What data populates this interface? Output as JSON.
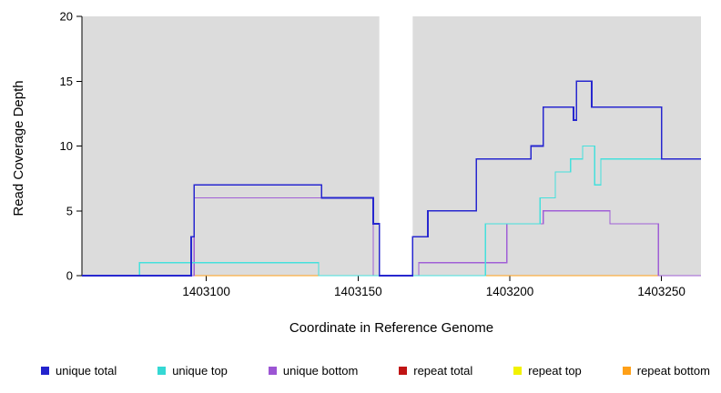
{
  "chart_data": {
    "type": "line",
    "subtype": "step-coverage-plot",
    "title": "",
    "xlabel": "Coordinate in Reference Genome",
    "ylabel": "Read Coverage Depth",
    "xlim": [
      1403059,
      1403263
    ],
    "ylim": [
      0,
      20
    ],
    "x_ticks": [
      1403100,
      1403150,
      1403200,
      1403250
    ],
    "y_ticks": [
      0,
      5,
      10,
      15,
      20
    ],
    "plot_bg": "#dcdcdc",
    "grid": false,
    "gap_region": {
      "x_start": 1403157,
      "x_end": 1403168
    },
    "series": [
      {
        "name": "repeat total",
        "color": "#c01414",
        "width": 1.3,
        "points": []
      },
      {
        "name": "repeat top",
        "color": "#f2f200",
        "width": 1.3,
        "points": []
      },
      {
        "name": "repeat bottom",
        "color": "#ffa018",
        "width": 1.4,
        "points": [
          [
            1403096,
            0
          ],
          [
            1403250,
            0
          ]
        ]
      },
      {
        "name": "unique bottom",
        "color": "#a express05fd6",
        "width": 1.3,
        "points": [
          [
            1403059,
            0
          ],
          [
            1403096,
            0
          ],
          [
            1403096,
            6
          ],
          [
            1403155,
            6
          ],
          [
            1403155,
            0
          ],
          [
            1403170,
            0
          ],
          [
            1403170,
            1
          ],
          [
            1403199,
            1
          ],
          [
            1403199,
            4
          ],
          [
            1403211,
            4
          ],
          [
            1403211,
            5
          ],
          [
            1403233,
            5
          ],
          [
            1403233,
            4
          ],
          [
            1403249,
            4
          ],
          [
            1403249,
            0
          ],
          [
            1403263,
            0
          ]
        ]
      },
      {
        "name": "unique top",
        "color": "#45e0dc",
        "width": 1.3,
        "points": [
          [
            1403059,
            0
          ],
          [
            1403078,
            0
          ],
          [
            1403078,
            1
          ],
          [
            1403137,
            1
          ],
          [
            1403137,
            0
          ],
          [
            1403192,
            0
          ],
          [
            1403192,
            4
          ],
          [
            1403210,
            4
          ],
          [
            1403210,
            6
          ],
          [
            1403215,
            6
          ],
          [
            1403215,
            8
          ],
          [
            1403220,
            8
          ],
          [
            1403220,
            9
          ],
          [
            1403224,
            9
          ],
          [
            1403224,
            10
          ],
          [
            1403228,
            10
          ],
          [
            1403228,
            7
          ],
          [
            1403230,
            7
          ],
          [
            1403230,
            9
          ],
          [
            1403263,
            9
          ]
        ]
      },
      {
        "name": "unique total",
        "color": "#2727cf",
        "width": 1.7,
        "points": [
          [
            1403059,
            0
          ],
          [
            1403095,
            0
          ],
          [
            1403095,
            3
          ],
          [
            1403096,
            3
          ],
          [
            1403096,
            7
          ],
          [
            1403138,
            7
          ],
          [
            1403138,
            6
          ],
          [
            1403155,
            6
          ],
          [
            1403155,
            4
          ],
          [
            1403157,
            4
          ],
          [
            1403157,
            0
          ],
          [
            1403168,
            0
          ],
          [
            1403168,
            3
          ],
          [
            1403173,
            3
          ],
          [
            1403173,
            5
          ],
          [
            1403189,
            5
          ],
          [
            1403189,
            9
          ],
          [
            1403207,
            9
          ],
          [
            1403207,
            10
          ],
          [
            1403211,
            10
          ],
          [
            1403211,
            13
          ],
          [
            1403221,
            13
          ],
          [
            1403221,
            12
          ],
          [
            1403222,
            12
          ],
          [
            1403222,
            15
          ],
          [
            1403227,
            15
          ],
          [
            1403227,
            13
          ],
          [
            1403250,
            13
          ],
          [
            1403250,
            9
          ],
          [
            1403263,
            9
          ]
        ]
      }
    ],
    "legend": [
      {
        "label": "unique total",
        "color": "#2323cd"
      },
      {
        "label": "unique top",
        "color": "#35d8d4"
      },
      {
        "label": "unique bottom",
        "color": "#9c55d4"
      },
      {
        "label": "repeat total",
        "color": "#c01414"
      },
      {
        "label": "repeat top",
        "color": "#f2f200"
      },
      {
        "label": "repeat bottom",
        "color": "#ffa018"
      }
    ],
    "legend_position": "bottom"
  }
}
